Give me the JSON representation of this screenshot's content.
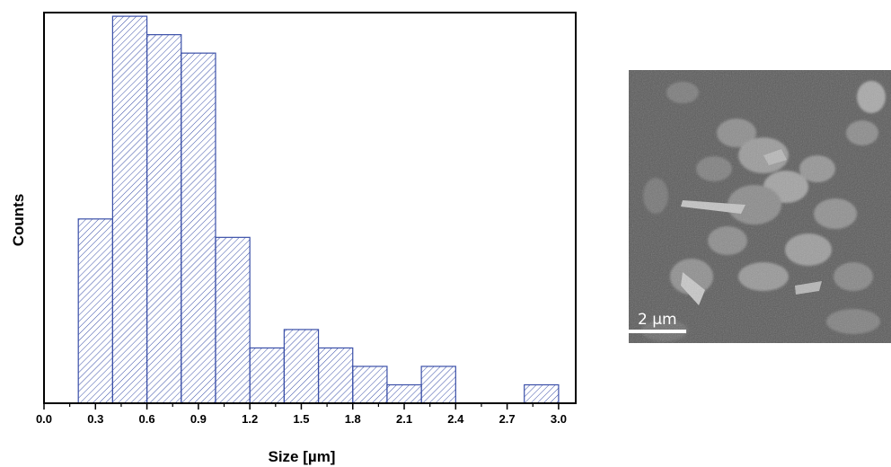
{
  "chart_data": {
    "type": "bar",
    "xlabel": "Size [µm]",
    "ylabel": "Counts",
    "xlim": [
      0.0,
      3.1
    ],
    "ylim": [
      0,
      21.2
    ],
    "x_ticks": [
      "0.0",
      "0.3",
      "0.6",
      "0.9",
      "1.2",
      "1.5",
      "1.8",
      "2.1",
      "2.4",
      "2.7",
      "3.0"
    ],
    "bin_edges": [
      0.2,
      0.4,
      0.6,
      0.8,
      1.0,
      1.2,
      1.4,
      1.6,
      1.8,
      2.0,
      2.2,
      2.4,
      2.6,
      2.8,
      3.0
    ],
    "values": [
      10,
      21,
      20,
      19,
      9,
      3,
      4,
      3,
      2,
      1,
      2,
      0,
      0,
      1
    ],
    "fill": "hatched",
    "bar_color": "#3a4fa8",
    "grid": false
  },
  "image": {
    "scale_bar_label": "2 µm"
  }
}
